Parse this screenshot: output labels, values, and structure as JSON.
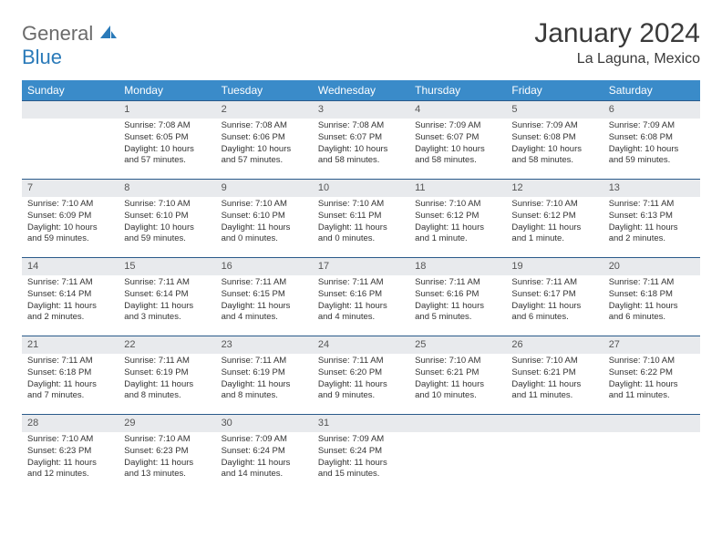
{
  "logo": {
    "part1": "General",
    "part2": "Blue"
  },
  "title": "January 2024",
  "location": "La Laguna, Mexico",
  "colors": {
    "header_bg": "#3a8bc9",
    "header_text": "#ffffff",
    "daynum_bg": "#e8eaed",
    "border": "#2a5a8a",
    "logo_gray": "#6b6b6b",
    "logo_blue": "#2a7ab9"
  },
  "dow": [
    "Sunday",
    "Monday",
    "Tuesday",
    "Wednesday",
    "Thursday",
    "Friday",
    "Saturday"
  ],
  "weeks": [
    {
      "nums": [
        "",
        "1",
        "2",
        "3",
        "4",
        "5",
        "6"
      ],
      "cells": [
        {
          "sunrise": "",
          "sunset": "",
          "daylight": ""
        },
        {
          "sunrise": "Sunrise: 7:08 AM",
          "sunset": "Sunset: 6:05 PM",
          "daylight": "Daylight: 10 hours and 57 minutes."
        },
        {
          "sunrise": "Sunrise: 7:08 AM",
          "sunset": "Sunset: 6:06 PM",
          "daylight": "Daylight: 10 hours and 57 minutes."
        },
        {
          "sunrise": "Sunrise: 7:08 AM",
          "sunset": "Sunset: 6:07 PM",
          "daylight": "Daylight: 10 hours and 58 minutes."
        },
        {
          "sunrise": "Sunrise: 7:09 AM",
          "sunset": "Sunset: 6:07 PM",
          "daylight": "Daylight: 10 hours and 58 minutes."
        },
        {
          "sunrise": "Sunrise: 7:09 AM",
          "sunset": "Sunset: 6:08 PM",
          "daylight": "Daylight: 10 hours and 58 minutes."
        },
        {
          "sunrise": "Sunrise: 7:09 AM",
          "sunset": "Sunset: 6:08 PM",
          "daylight": "Daylight: 10 hours and 59 minutes."
        }
      ]
    },
    {
      "nums": [
        "7",
        "8",
        "9",
        "10",
        "11",
        "12",
        "13"
      ],
      "cells": [
        {
          "sunrise": "Sunrise: 7:10 AM",
          "sunset": "Sunset: 6:09 PM",
          "daylight": "Daylight: 10 hours and 59 minutes."
        },
        {
          "sunrise": "Sunrise: 7:10 AM",
          "sunset": "Sunset: 6:10 PM",
          "daylight": "Daylight: 10 hours and 59 minutes."
        },
        {
          "sunrise": "Sunrise: 7:10 AM",
          "sunset": "Sunset: 6:10 PM",
          "daylight": "Daylight: 11 hours and 0 minutes."
        },
        {
          "sunrise": "Sunrise: 7:10 AM",
          "sunset": "Sunset: 6:11 PM",
          "daylight": "Daylight: 11 hours and 0 minutes."
        },
        {
          "sunrise": "Sunrise: 7:10 AM",
          "sunset": "Sunset: 6:12 PM",
          "daylight": "Daylight: 11 hours and 1 minute."
        },
        {
          "sunrise": "Sunrise: 7:10 AM",
          "sunset": "Sunset: 6:12 PM",
          "daylight": "Daylight: 11 hours and 1 minute."
        },
        {
          "sunrise": "Sunrise: 7:11 AM",
          "sunset": "Sunset: 6:13 PM",
          "daylight": "Daylight: 11 hours and 2 minutes."
        }
      ]
    },
    {
      "nums": [
        "14",
        "15",
        "16",
        "17",
        "18",
        "19",
        "20"
      ],
      "cells": [
        {
          "sunrise": "Sunrise: 7:11 AM",
          "sunset": "Sunset: 6:14 PM",
          "daylight": "Daylight: 11 hours and 2 minutes."
        },
        {
          "sunrise": "Sunrise: 7:11 AM",
          "sunset": "Sunset: 6:14 PM",
          "daylight": "Daylight: 11 hours and 3 minutes."
        },
        {
          "sunrise": "Sunrise: 7:11 AM",
          "sunset": "Sunset: 6:15 PM",
          "daylight": "Daylight: 11 hours and 4 minutes."
        },
        {
          "sunrise": "Sunrise: 7:11 AM",
          "sunset": "Sunset: 6:16 PM",
          "daylight": "Daylight: 11 hours and 4 minutes."
        },
        {
          "sunrise": "Sunrise: 7:11 AM",
          "sunset": "Sunset: 6:16 PM",
          "daylight": "Daylight: 11 hours and 5 minutes."
        },
        {
          "sunrise": "Sunrise: 7:11 AM",
          "sunset": "Sunset: 6:17 PM",
          "daylight": "Daylight: 11 hours and 6 minutes."
        },
        {
          "sunrise": "Sunrise: 7:11 AM",
          "sunset": "Sunset: 6:18 PM",
          "daylight": "Daylight: 11 hours and 6 minutes."
        }
      ]
    },
    {
      "nums": [
        "21",
        "22",
        "23",
        "24",
        "25",
        "26",
        "27"
      ],
      "cells": [
        {
          "sunrise": "Sunrise: 7:11 AM",
          "sunset": "Sunset: 6:18 PM",
          "daylight": "Daylight: 11 hours and 7 minutes."
        },
        {
          "sunrise": "Sunrise: 7:11 AM",
          "sunset": "Sunset: 6:19 PM",
          "daylight": "Daylight: 11 hours and 8 minutes."
        },
        {
          "sunrise": "Sunrise: 7:11 AM",
          "sunset": "Sunset: 6:19 PM",
          "daylight": "Daylight: 11 hours and 8 minutes."
        },
        {
          "sunrise": "Sunrise: 7:11 AM",
          "sunset": "Sunset: 6:20 PM",
          "daylight": "Daylight: 11 hours and 9 minutes."
        },
        {
          "sunrise": "Sunrise: 7:10 AM",
          "sunset": "Sunset: 6:21 PM",
          "daylight": "Daylight: 11 hours and 10 minutes."
        },
        {
          "sunrise": "Sunrise: 7:10 AM",
          "sunset": "Sunset: 6:21 PM",
          "daylight": "Daylight: 11 hours and 11 minutes."
        },
        {
          "sunrise": "Sunrise: 7:10 AM",
          "sunset": "Sunset: 6:22 PM",
          "daylight": "Daylight: 11 hours and 11 minutes."
        }
      ]
    },
    {
      "nums": [
        "28",
        "29",
        "30",
        "31",
        "",
        "",
        ""
      ],
      "cells": [
        {
          "sunrise": "Sunrise: 7:10 AM",
          "sunset": "Sunset: 6:23 PM",
          "daylight": "Daylight: 11 hours and 12 minutes."
        },
        {
          "sunrise": "Sunrise: 7:10 AM",
          "sunset": "Sunset: 6:23 PM",
          "daylight": "Daylight: 11 hours and 13 minutes."
        },
        {
          "sunrise": "Sunrise: 7:09 AM",
          "sunset": "Sunset: 6:24 PM",
          "daylight": "Daylight: 11 hours and 14 minutes."
        },
        {
          "sunrise": "Sunrise: 7:09 AM",
          "sunset": "Sunset: 6:24 PM",
          "daylight": "Daylight: 11 hours and 15 minutes."
        },
        {
          "sunrise": "",
          "sunset": "",
          "daylight": ""
        },
        {
          "sunrise": "",
          "sunset": "",
          "daylight": ""
        },
        {
          "sunrise": "",
          "sunset": "",
          "daylight": ""
        }
      ]
    }
  ]
}
